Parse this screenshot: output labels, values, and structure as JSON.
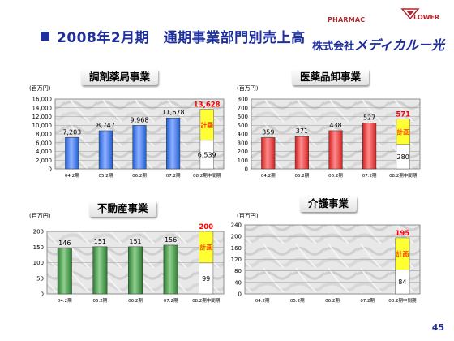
{
  "header": {
    "title": "2008年2月期　通期事業部門別売上高",
    "logo": {
      "pharmac": "PHARMAC",
      "flower": "LOWER",
      "company_prefix": "株式会社",
      "company_name": "メディカルー光"
    }
  },
  "page_number": "45",
  "colors": {
    "title_blue": "#1f2f9c",
    "blue_bar": "#1f5fd6",
    "red_bar": "#d42020",
    "green_bar": "#2e7d32",
    "plan_yellow": "#ffff33",
    "forecast_value_red": "#ff0000"
  },
  "chart_data": [
    {
      "type": "bar",
      "title": "調剤薬局事業",
      "unit": "(百万円)",
      "categories": [
        "04.2期",
        "05.2期",
        "06.2期",
        "07.2期",
        "08.2期中間期"
      ],
      "values": [
        7203,
        8747,
        9968,
        11678,
        6539
      ],
      "value_labels": [
        "7,203",
        "8,747",
        "9,968",
        "11,678",
        "6,539"
      ],
      "plan_total": 13628,
      "plan_total_label": "13,628",
      "plan_label": "計画",
      "ylim": [
        0,
        16000
      ],
      "yticks": [
        0,
        2000,
        4000,
        6000,
        8000,
        10000,
        12000,
        14000,
        16000
      ],
      "ytick_labels": [
        "0",
        "2,000",
        "4,000",
        "6,000",
        "8,000",
        "10,000",
        "12,000",
        "14,000",
        "16,000"
      ],
      "color": "#1f5fd6",
      "grid": true
    },
    {
      "type": "bar",
      "title": "医薬品卸事業",
      "unit": "(百万円)",
      "categories": [
        "04.2期",
        "05.2期",
        "06.2期",
        "07.2期",
        "08.2期中間期"
      ],
      "values": [
        359,
        371,
        438,
        527,
        280
      ],
      "value_labels": [
        "359",
        "371",
        "438",
        "527",
        "280"
      ],
      "plan_total": 571,
      "plan_total_label": "571",
      "plan_label": "計画",
      "ylim": [
        0,
        800
      ],
      "yticks": [
        0,
        100,
        200,
        300,
        400,
        500,
        600,
        700,
        800
      ],
      "ytick_labels": [
        "0",
        "100",
        "200",
        "300",
        "400",
        "500",
        "600",
        "700",
        "800"
      ],
      "color": "#d42020",
      "grid": true
    },
    {
      "type": "bar",
      "title": "不動産事業",
      "unit": "(百万円)",
      "categories": [
        "04.2期",
        "05.2期",
        "06.2期",
        "07.2期",
        "08.2期中間期"
      ],
      "values": [
        146,
        151,
        151,
        156,
        99
      ],
      "value_labels": [
        "146",
        "151",
        "151",
        "156",
        "99"
      ],
      "plan_total": 200,
      "plan_total_label": "200",
      "plan_label": "計画",
      "ylim": [
        0,
        200
      ],
      "yticks": [
        0,
        50,
        100,
        150,
        200
      ],
      "ytick_labels": [
        "0",
        "50",
        "100",
        "150",
        "200"
      ],
      "color": "#2e7d32",
      "grid": true
    },
    {
      "type": "bar",
      "title": "介護事業",
      "unit": "(百万円)",
      "categories": [
        "04.2期",
        "05.2期",
        "06.2期",
        "07.2期",
        "08.2期中間期"
      ],
      "values": [
        null,
        null,
        null,
        null,
        84
      ],
      "value_labels": [
        "",
        "",
        "",
        "",
        "84"
      ],
      "plan_total": 195,
      "plan_total_label": "195",
      "plan_label": "計画",
      "ylim": [
        0,
        240
      ],
      "yticks": [
        0,
        40,
        80,
        120,
        160,
        200,
        240
      ],
      "ytick_labels": [
        "0",
        "40",
        "80",
        "120",
        "160",
        "200",
        "240"
      ],
      "color": "#d42020",
      "grid": true
    }
  ]
}
